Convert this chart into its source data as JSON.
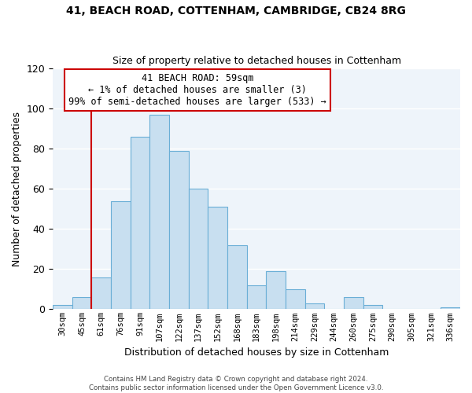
{
  "title1": "41, BEACH ROAD, COTTENHAM, CAMBRIDGE, CB24 8RG",
  "title2": "Size of property relative to detached houses in Cottenham",
  "xlabel": "Distribution of detached houses by size in Cottenham",
  "ylabel": "Number of detached properties",
  "bin_labels": [
    "30sqm",
    "45sqm",
    "61sqm",
    "76sqm",
    "91sqm",
    "107sqm",
    "122sqm",
    "137sqm",
    "152sqm",
    "168sqm",
    "183sqm",
    "198sqm",
    "214sqm",
    "229sqm",
    "244sqm",
    "260sqm",
    "275sqm",
    "290sqm",
    "305sqm",
    "321sqm",
    "336sqm"
  ],
  "bin_values": [
    2,
    6,
    16,
    54,
    86,
    97,
    79,
    60,
    51,
    32,
    12,
    19,
    10,
    3,
    0,
    6,
    2,
    0,
    0,
    0,
    1
  ],
  "bar_color": "#c8dff0",
  "bar_edge_color": "#6aaed6",
  "property_line_color": "#cc0000",
  "ylim": [
    0,
    120
  ],
  "yticks": [
    0,
    20,
    40,
    60,
    80,
    100,
    120
  ],
  "annotation_title": "41 BEACH ROAD: 59sqm",
  "annotation_line1": "← 1% of detached houses are smaller (3)",
  "annotation_line2": "99% of semi-detached houses are larger (533) →",
  "annotation_box_color": "#ffffff",
  "annotation_box_edge_color": "#cc0000",
  "footnote1": "Contains HM Land Registry data © Crown copyright and database right 2024.",
  "footnote2": "Contains public sector information licensed under the Open Government Licence v3.0.",
  "bg_color": "#eef4fa"
}
